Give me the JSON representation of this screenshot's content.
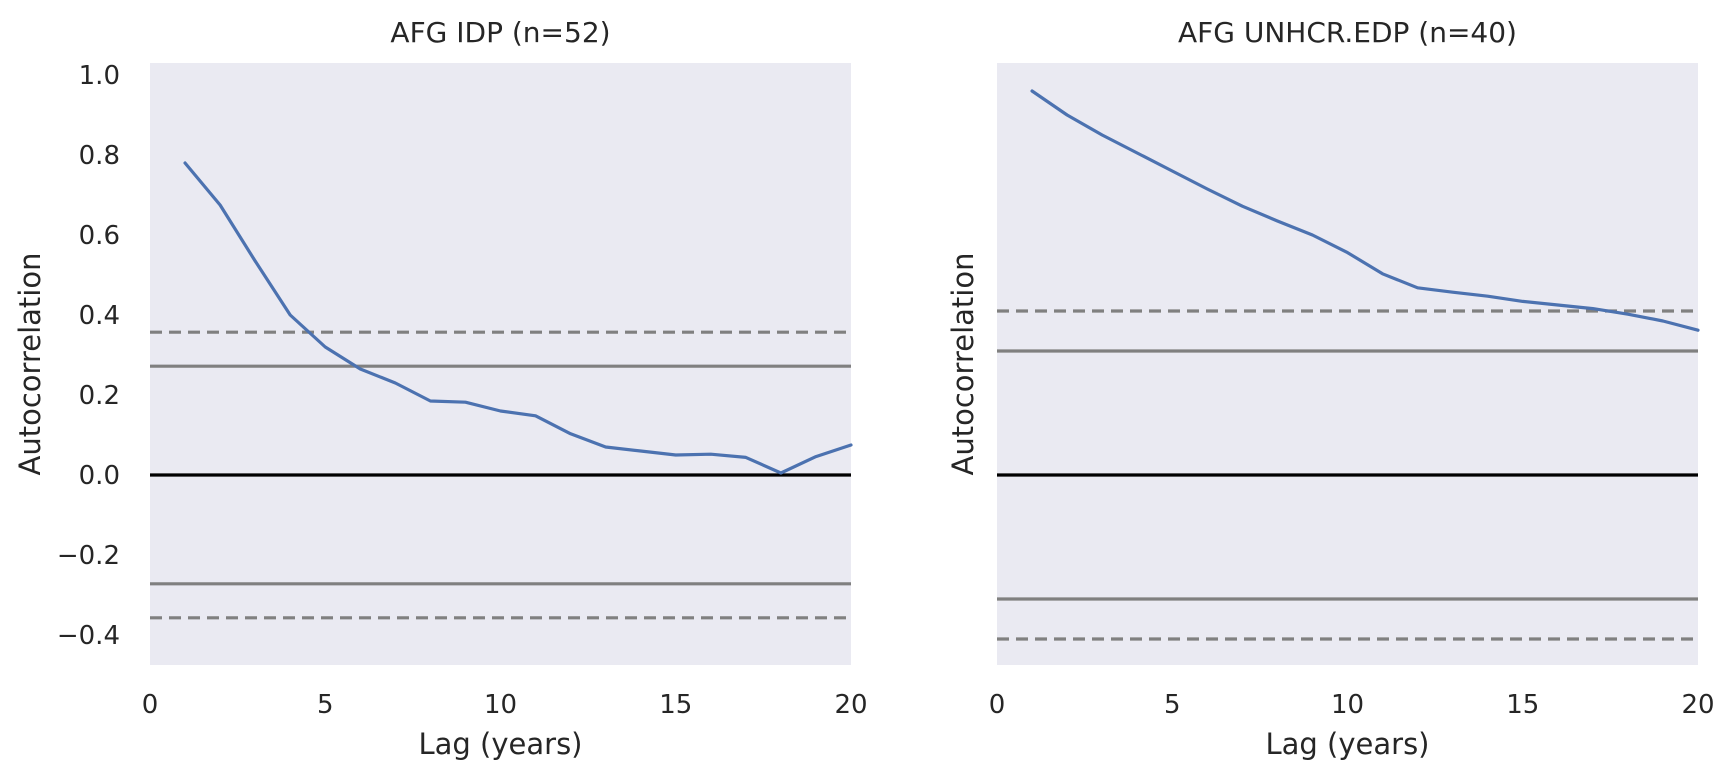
{
  "chart_data": [
    {
      "type": "line",
      "title": "AFG IDP (n=52)",
      "xlabel": "Lag (years)",
      "ylabel": "Autocorrelation",
      "xlim": [
        0,
        20
      ],
      "ylim": [
        -0.475,
        1.03
      ],
      "xticks": [
        0,
        5,
        10,
        15,
        20
      ],
      "xtick_labels": [
        "0",
        "5",
        "10",
        "15",
        "20"
      ],
      "yticks": [
        1.0,
        0.8,
        0.6,
        0.4,
        0.2,
        0.0,
        -0.2,
        -0.4
      ],
      "ytick_labels": [
        "1.0",
        "0.8",
        "0.6",
        "0.4",
        "0.2",
        "0.0",
        "−0.2",
        "−0.4"
      ],
      "show_yticks": true,
      "grid": false,
      "series_color": "#4c72b0",
      "x": [
        1,
        2,
        3,
        4,
        5,
        6,
        7,
        8,
        9,
        10,
        11,
        12,
        13,
        14,
        15,
        16,
        17,
        18,
        19,
        20
      ],
      "values": [
        0.78,
        0.675,
        0.535,
        0.4,
        0.32,
        0.265,
        0.23,
        0.185,
        0.182,
        0.16,
        0.148,
        0.103,
        0.07,
        0.06,
        0.05,
        0.052,
        0.044,
        0.005,
        0.046,
        0.075
      ],
      "reference_lines": [
        {
          "y": 0.0,
          "style": "zero"
        },
        {
          "y": 0.272,
          "style": "ci-solid"
        },
        {
          "y": -0.272,
          "style": "ci-solid"
        },
        {
          "y": 0.357,
          "style": "ci-dash"
        },
        {
          "y": -0.357,
          "style": "ci-dash"
        }
      ]
    },
    {
      "type": "line",
      "title": "AFG UNHCR.EDP (n=40)",
      "xlabel": "Lag (years)",
      "ylabel": "Autocorrelation",
      "xlim": [
        0,
        20
      ],
      "ylim": [
        -0.475,
        1.03
      ],
      "xticks": [
        0,
        5,
        10,
        15,
        20
      ],
      "xtick_labels": [
        "0",
        "5",
        "10",
        "15",
        "20"
      ],
      "yticks": [],
      "ytick_labels": [],
      "show_yticks": false,
      "grid": false,
      "series_color": "#4c72b0",
      "x": [
        1,
        2,
        3,
        4,
        5,
        6,
        7,
        8,
        9,
        10,
        11,
        12,
        13,
        14,
        15,
        16,
        17,
        18,
        19,
        20
      ],
      "values": [
        0.96,
        0.9,
        0.85,
        0.805,
        0.76,
        0.715,
        0.672,
        0.635,
        0.6,
        0.556,
        0.503,
        0.468,
        0.457,
        0.447,
        0.434,
        0.425,
        0.416,
        0.402,
        0.385,
        0.362
      ],
      "reference_lines": [
        {
          "y": 0.0,
          "style": "zero"
        },
        {
          "y": 0.31,
          "style": "ci-solid"
        },
        {
          "y": -0.31,
          "style": "ci-solid"
        },
        {
          "y": 0.41,
          "style": "ci-dash"
        },
        {
          "y": -0.41,
          "style": "ci-dash"
        }
      ]
    }
  ]
}
